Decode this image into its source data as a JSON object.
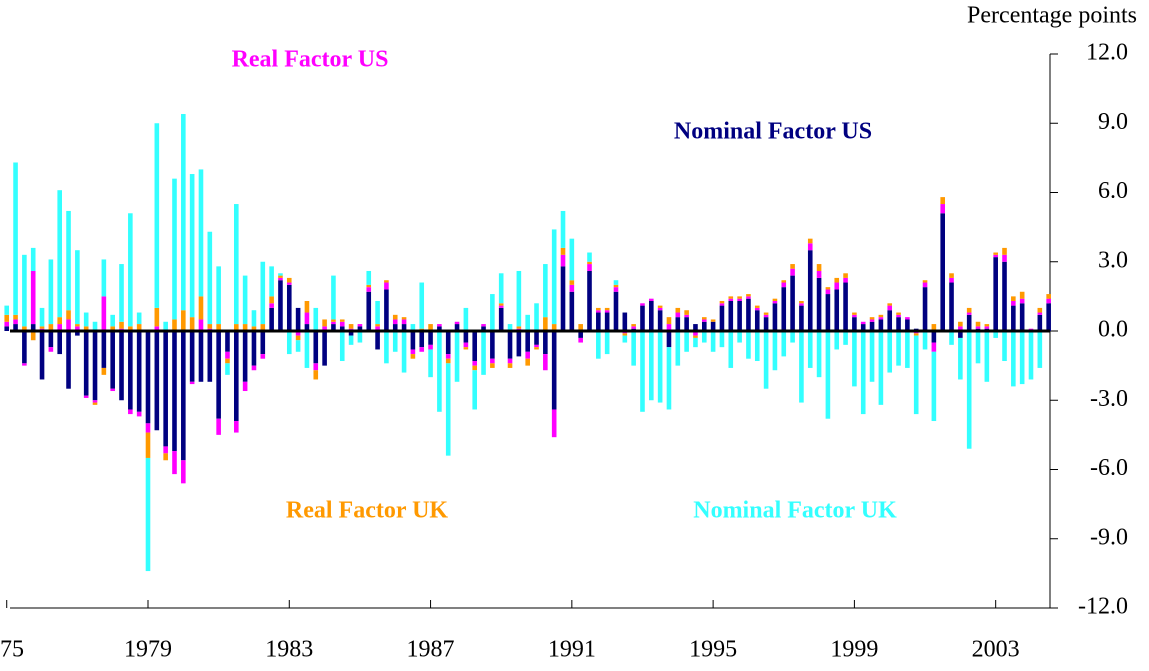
{
  "chart_data": {
    "type": "stacked-bar",
    "y_axis_label": "Percentage points",
    "ylim": [
      -12,
      12
    ],
    "yticks": [
      {
        "value": 12,
        "label": "12.0"
      },
      {
        "value": 9,
        "label": "9.0"
      },
      {
        "value": 6,
        "label": "6.0"
      },
      {
        "value": 3,
        "label": "3.0"
      },
      {
        "value": 0,
        "label": "0.0"
      },
      {
        "value": -3,
        "label": "-3.0"
      },
      {
        "value": -6,
        "label": "-6.0"
      },
      {
        "value": -9,
        "label": "-9.0"
      },
      {
        "value": -12,
        "label": "-12.0"
      }
    ],
    "categories": [
      "75",
      null,
      null,
      null,
      null,
      null,
      null,
      null,
      null,
      null,
      null,
      null,
      null,
      null,
      null,
      null,
      "1979",
      null,
      null,
      null,
      null,
      null,
      null,
      null,
      null,
      null,
      null,
      null,
      null,
      null,
      null,
      null,
      "1983",
      null,
      null,
      null,
      null,
      null,
      null,
      null,
      null,
      null,
      null,
      null,
      null,
      null,
      null,
      null,
      "1987",
      null,
      null,
      null,
      null,
      null,
      null,
      null,
      null,
      null,
      null,
      null,
      null,
      null,
      null,
      null,
      "1991",
      null,
      null,
      null,
      null,
      null,
      null,
      null,
      null,
      null,
      null,
      null,
      null,
      null,
      null,
      null,
      "1995",
      null,
      null,
      null,
      null,
      null,
      null,
      null,
      null,
      null,
      null,
      null,
      null,
      null,
      null,
      null,
      "1999",
      null,
      null,
      null,
      null,
      null,
      null,
      null,
      null,
      null,
      null,
      null,
      null,
      null,
      null,
      null,
      "2003",
      null,
      null,
      null,
      null,
      null,
      null
    ],
    "series": [
      {
        "name": "Nominal Factor US",
        "color": "#000080",
        "values": [
          0.2,
          0.3,
          -1.4,
          0.3,
          -2.1,
          -0.7,
          -1.0,
          -2.5,
          -0.2,
          -2.8,
          -3.0,
          -1.6,
          -2.5,
          -3.0,
          -3.4,
          -3.5,
          -4.0,
          -4.3,
          -5.0,
          -5.2,
          -5.6,
          -2.2,
          -2.2,
          -2.2,
          -3.8,
          -0.9,
          -3.9,
          -2.2,
          -1.5,
          -1.0,
          1.0,
          2.2,
          2.0,
          1.0,
          0.3,
          -1.4,
          -1.5,
          0.3,
          0.2,
          -0.2,
          0.2,
          1.7,
          -0.8,
          1.8,
          0.3,
          0.3,
          -0.8,
          -0.7,
          -0.6,
          0.2,
          -1.0,
          0.3,
          -0.5,
          -1.3,
          0.2,
          -1.2,
          1.0,
          -1.2,
          -1.1,
          -0.9,
          -0.6,
          -1.0,
          -3.4,
          2.8,
          1.7,
          -0.3,
          2.6,
          0.8,
          0.8,
          1.7,
          0.8,
          0.1,
          1.1,
          1.3,
          0.9,
          -0.7,
          0.6,
          0.6,
          0.3,
          0.4,
          0.4,
          1.1,
          1.3,
          1.3,
          1.4,
          0.9,
          0.6,
          1.2,
          1.9,
          2.4,
          1.1,
          3.5,
          2.3,
          1.6,
          1.8,
          2.1,
          0.6,
          0.3,
          0.4,
          0.5,
          0.9,
          0.6,
          0.5,
          0.1,
          1.9,
          -0.5,
          5.1,
          2.1,
          -0.3,
          0.7,
          0.1,
          0.1,
          3.2,
          3.0,
          1.1,
          1.2,
          0,
          0.7,
          1.2
        ]
      },
      {
        "name": "Real Factor US",
        "color": "#ff00ff",
        "values": [
          0.2,
          0.2,
          -0.1,
          2.3,
          0.1,
          -0.2,
          0.3,
          0.5,
          0.2,
          -0.1,
          -0.1,
          1.5,
          -0.1,
          0.1,
          -0.2,
          -0.2,
          -0.4,
          0.2,
          -0.3,
          -1.0,
          -1.0,
          -0.1,
          0.5,
          0.1,
          -0.7,
          -0.3,
          -0.5,
          -0.4,
          -0.2,
          -0.2,
          0.2,
          0.1,
          0.1,
          -0.2,
          0.5,
          -0.3,
          0.2,
          0.1,
          0.2,
          0.1,
          0.1,
          0.2,
          0.2,
          0.3,
          0.2,
          0.2,
          -0.2,
          -0.2,
          -0.2,
          0.1,
          -0.2,
          0.1,
          -0.2,
          -0.2,
          0.1,
          -0.2,
          0.1,
          -0.2,
          0.1,
          -0.3,
          -0.1,
          -0.7,
          -1.2,
          0.5,
          0.3,
          -0.2,
          0.3,
          0.1,
          0.1,
          0.2,
          -0.1,
          0.1,
          0.1,
          0.1,
          0.1,
          0.3,
          0.2,
          0.1,
          -0.2,
          0.1,
          0,
          0.1,
          0.1,
          0.1,
          0.1,
          0.1,
          0.1,
          0.1,
          0.2,
          0.3,
          0.1,
          0.3,
          0.3,
          0.2,
          0.3,
          0.2,
          0.1,
          0.1,
          0.1,
          0.1,
          0.2,
          0.1,
          0.1,
          -0.1,
          0.2,
          -0.4,
          0.4,
          0.2,
          0.2,
          0.1,
          0.1,
          0.1,
          0.1,
          0.3,
          0.2,
          0.2,
          0.1,
          0.1,
          0.2
        ]
      },
      {
        "name": "Real Factor UK",
        "color": "#ff9900",
        "values": [
          0.3,
          0.2,
          0.2,
          -0.4,
          0.1,
          0.3,
          0.3,
          0.4,
          0.1,
          0.2,
          -0.1,
          -0.3,
          0.2,
          0.3,
          0.2,
          0.3,
          -1.1,
          0.8,
          -0.3,
          0.5,
          0.9,
          0.6,
          1.0,
          0.2,
          0.3,
          -0.2,
          0.3,
          0.3,
          0.2,
          0.3,
          0.3,
          0.1,
          0.2,
          -0.2,
          0.5,
          -0.4,
          0.3,
          0.1,
          0.1,
          0.2,
          0,
          0.1,
          0.1,
          0.1,
          0.2,
          0.1,
          -0.2,
          0.1,
          0.3,
          0,
          -0.2,
          0,
          -0.1,
          -0.2,
          0,
          -0.2,
          0.1,
          -0.2,
          0.1,
          -0.3,
          -0.1,
          0.6,
          0.3,
          0.3,
          0.2,
          0.3,
          0.1,
          0.1,
          0.1,
          0.1,
          -0.1,
          0.1,
          0,
          0,
          0.1,
          0.3,
          0.2,
          0.2,
          -0.1,
          0.1,
          0.1,
          0.1,
          0.1,
          0.1,
          0.1,
          0.1,
          0.1,
          0.1,
          0.1,
          0.2,
          0.1,
          0.2,
          0.3,
          0.1,
          0.2,
          0.2,
          0.1,
          0,
          0.1,
          0.1,
          0.1,
          0.1,
          0,
          -0.1,
          0.1,
          0.3,
          0.3,
          0.2,
          0.2,
          0.2,
          0.2,
          0.1,
          0.1,
          0.3,
          0.2,
          0.3,
          0,
          0.2,
          0.2
        ]
      },
      {
        "name": "Nominal Factor UK",
        "color": "#33ffff",
        "values": [
          0.4,
          6.6,
          3.1,
          1.0,
          0.8,
          2.8,
          5.5,
          4.3,
          3.2,
          0.6,
          0.4,
          1.6,
          0.5,
          2.5,
          4.9,
          0.5,
          -4.9,
          8.0,
          0.4,
          6.1,
          8.5,
          6.2,
          5.5,
          4.0,
          2.5,
          -0.5,
          5.2,
          2.1,
          0.7,
          2.7,
          1.3,
          0.1,
          -1.0,
          -0.5,
          -1.6,
          1.0,
          0,
          1.9,
          -1.3,
          -0.4,
          -0.5,
          0.6,
          1.0,
          -1.4,
          -0.9,
          -1.8,
          0.3,
          2.0,
          -1.2,
          -3.5,
          -4.0,
          -2.2,
          1.0,
          -1.7,
          -1.9,
          1.6,
          1.3,
          0.3,
          2.4,
          0.7,
          1.2,
          2.3,
          4.1,
          1.6,
          1.8,
          0,
          0.4,
          -1.2,
          -1.0,
          0.2,
          -0.3,
          -1.5,
          -3.5,
          -3.0,
          -3.1,
          -2.7,
          -1.5,
          -0.9,
          -0.4,
          -0.5,
          -0.9,
          -0.7,
          -1.6,
          -0.5,
          -1.2,
          -1.3,
          -2.5,
          -1.7,
          -1.1,
          -0.5,
          -3.1,
          -1.6,
          -2.0,
          -3.8,
          -0.8,
          -0.6,
          -2.4,
          -3.6,
          -2.2,
          -3.2,
          -1.8,
          -1.5,
          -1.6,
          -3.4,
          -0.8,
          -3.0,
          0,
          -0.6,
          -1.8,
          -5.1,
          -1.4,
          -2.2,
          -0.3,
          -1.3,
          -2.4,
          -2.3,
          -2.1,
          -1.6,
          0
        ]
      }
    ]
  }
}
